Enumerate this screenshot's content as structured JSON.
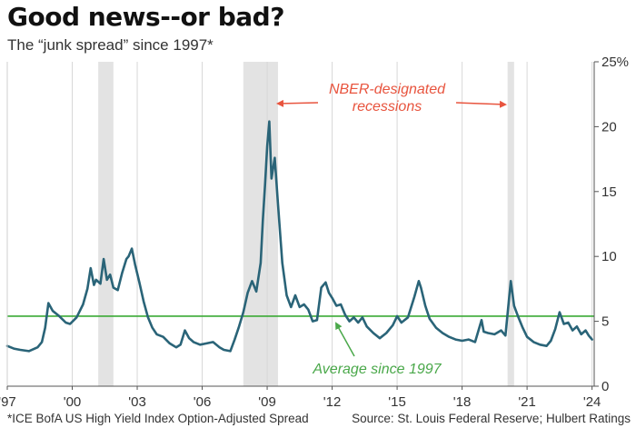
{
  "chart_data": {
    "type": "line",
    "title": "Good news--or bad?",
    "subtitle": "The “junk spread” since 1997*",
    "xlabel": "",
    "ylabel": "",
    "xlim": [
      1997,
      2024.1
    ],
    "ylim": [
      0,
      25
    ],
    "x_ticks": [
      {
        "value": 1997,
        "label": "'97"
      },
      {
        "value": 2000,
        "label": "'00"
      },
      {
        "value": 2003,
        "label": "'03"
      },
      {
        "value": 2006,
        "label": "'06"
      },
      {
        "value": 2009,
        "label": "'09"
      },
      {
        "value": 2012,
        "label": "'12"
      },
      {
        "value": 2015,
        "label": "'15"
      },
      {
        "value": 2018,
        "label": "'18"
      },
      {
        "value": 2021,
        "label": "'21"
      },
      {
        "value": 2024,
        "label": "'24"
      }
    ],
    "y_ticks": [
      {
        "value": 0,
        "label": "0"
      },
      {
        "value": 5,
        "label": "5"
      },
      {
        "value": 10,
        "label": "10"
      },
      {
        "value": 15,
        "label": "15"
      },
      {
        "value": 20,
        "label": "20"
      },
      {
        "value": 25,
        "label": "25%"
      }
    ],
    "grid": "vertical",
    "recessions": [
      {
        "start": 2001.2,
        "end": 2001.9
      },
      {
        "start": 2007.9,
        "end": 2009.5
      },
      {
        "start": 2020.1,
        "end": 2020.4
      }
    ],
    "average": 5.4,
    "annotations": {
      "recessions": [
        "NBER-designated",
        "recessions"
      ],
      "average": "Average since 1997"
    },
    "footnote": "*ICE BofA US High Yield Index Option-Adjusted Spread",
    "source": "Source: St. Louis Federal Reserve; Hulbert Ratings",
    "colors": {
      "line": "#2a6478",
      "average": "#3aaa35",
      "recession": "#e3e3e3",
      "annotation": "#e8543e",
      "average_annotation": "#4aa84a",
      "grid": "#d8d8d8"
    },
    "series": [
      {
        "x": [
          1997.0,
          1997.3,
          1997.6,
          1998.0,
          1998.4,
          1998.6,
          1998.75,
          1998.9,
          1999.1,
          1999.4,
          1999.7,
          1999.9,
          2000.2,
          2000.5,
          2000.7,
          2000.85,
          2001.0,
          2001.1,
          2001.3,
          2001.45,
          2001.6,
          2001.75,
          2001.9,
          2002.1,
          2002.3,
          2002.5,
          2002.6,
          2002.75,
          2002.9,
          2003.1,
          2003.3,
          2003.5,
          2003.7,
          2003.9,
          2004.2,
          2004.5,
          2004.8,
          2005.0,
          2005.2,
          2005.4,
          2005.6,
          2005.9,
          2006.2,
          2006.5,
          2006.8,
          2007.0,
          2007.3,
          2007.5,
          2007.7,
          2007.9,
          2008.1,
          2008.3,
          2008.5,
          2008.7,
          2008.8,
          2008.9,
          2009.0,
          2009.1,
          2009.2,
          2009.35,
          2009.5,
          2009.7,
          2009.9,
          2010.1,
          2010.3,
          2010.5,
          2010.7,
          2010.9,
          2011.1,
          2011.3,
          2011.5,
          2011.7,
          2011.85,
          2012.0,
          2012.2,
          2012.4,
          2012.6,
          2012.8,
          2013.0,
          2013.2,
          2013.4,
          2013.6,
          2013.9,
          2014.2,
          2014.5,
          2014.8,
          2015.0,
          2015.2,
          2015.5,
          2015.8,
          2016.0,
          2016.1,
          2016.3,
          2016.5,
          2016.8,
          2017.1,
          2017.4,
          2017.7,
          2018.0,
          2018.3,
          2018.6,
          2018.9,
          2019.0,
          2019.2,
          2019.5,
          2019.8,
          2020.0,
          2020.15,
          2020.25,
          2020.4,
          2020.6,
          2020.8,
          2021.0,
          2021.3,
          2021.6,
          2021.9,
          2022.1,
          2022.3,
          2022.5,
          2022.7,
          2022.9,
          2023.1,
          2023.3,
          2023.5,
          2023.7,
          2023.85,
          2024.0
        ],
        "y": [
          3.1,
          2.9,
          2.8,
          2.7,
          3.0,
          3.4,
          4.5,
          6.4,
          5.8,
          5.4,
          4.9,
          4.8,
          5.3,
          6.3,
          7.5,
          9.1,
          7.8,
          8.2,
          7.9,
          9.8,
          8.2,
          8.6,
          7.6,
          7.4,
          8.7,
          9.8,
          10.0,
          10.6,
          9.4,
          8.0,
          6.5,
          5.3,
          4.5,
          4.0,
          3.8,
          3.3,
          3.0,
          3.2,
          4.3,
          3.7,
          3.4,
          3.2,
          3.3,
          3.4,
          3.0,
          2.8,
          2.7,
          3.6,
          4.6,
          5.7,
          7.2,
          8.1,
          7.3,
          9.5,
          12.8,
          15.5,
          18.5,
          20.4,
          16.0,
          17.6,
          14.0,
          9.5,
          7.0,
          6.1,
          7.0,
          6.1,
          6.3,
          5.9,
          5.0,
          5.1,
          7.6,
          8.0,
          7.2,
          6.8,
          6.2,
          6.3,
          5.5,
          5.0,
          5.3,
          4.9,
          5.3,
          4.6,
          4.1,
          3.7,
          4.1,
          4.7,
          5.4,
          4.9,
          5.3,
          6.9,
          8.1,
          7.6,
          6.2,
          5.2,
          4.5,
          4.1,
          3.8,
          3.6,
          3.5,
          3.6,
          3.4,
          5.1,
          4.2,
          4.1,
          4.0,
          4.3,
          3.9,
          6.4,
          8.1,
          6.2,
          5.3,
          4.5,
          3.8,
          3.4,
          3.2,
          3.1,
          3.5,
          4.4,
          5.7,
          4.8,
          4.9,
          4.3,
          4.6,
          4.0,
          4.3,
          3.9,
          3.6
        ]
      }
    ]
  }
}
